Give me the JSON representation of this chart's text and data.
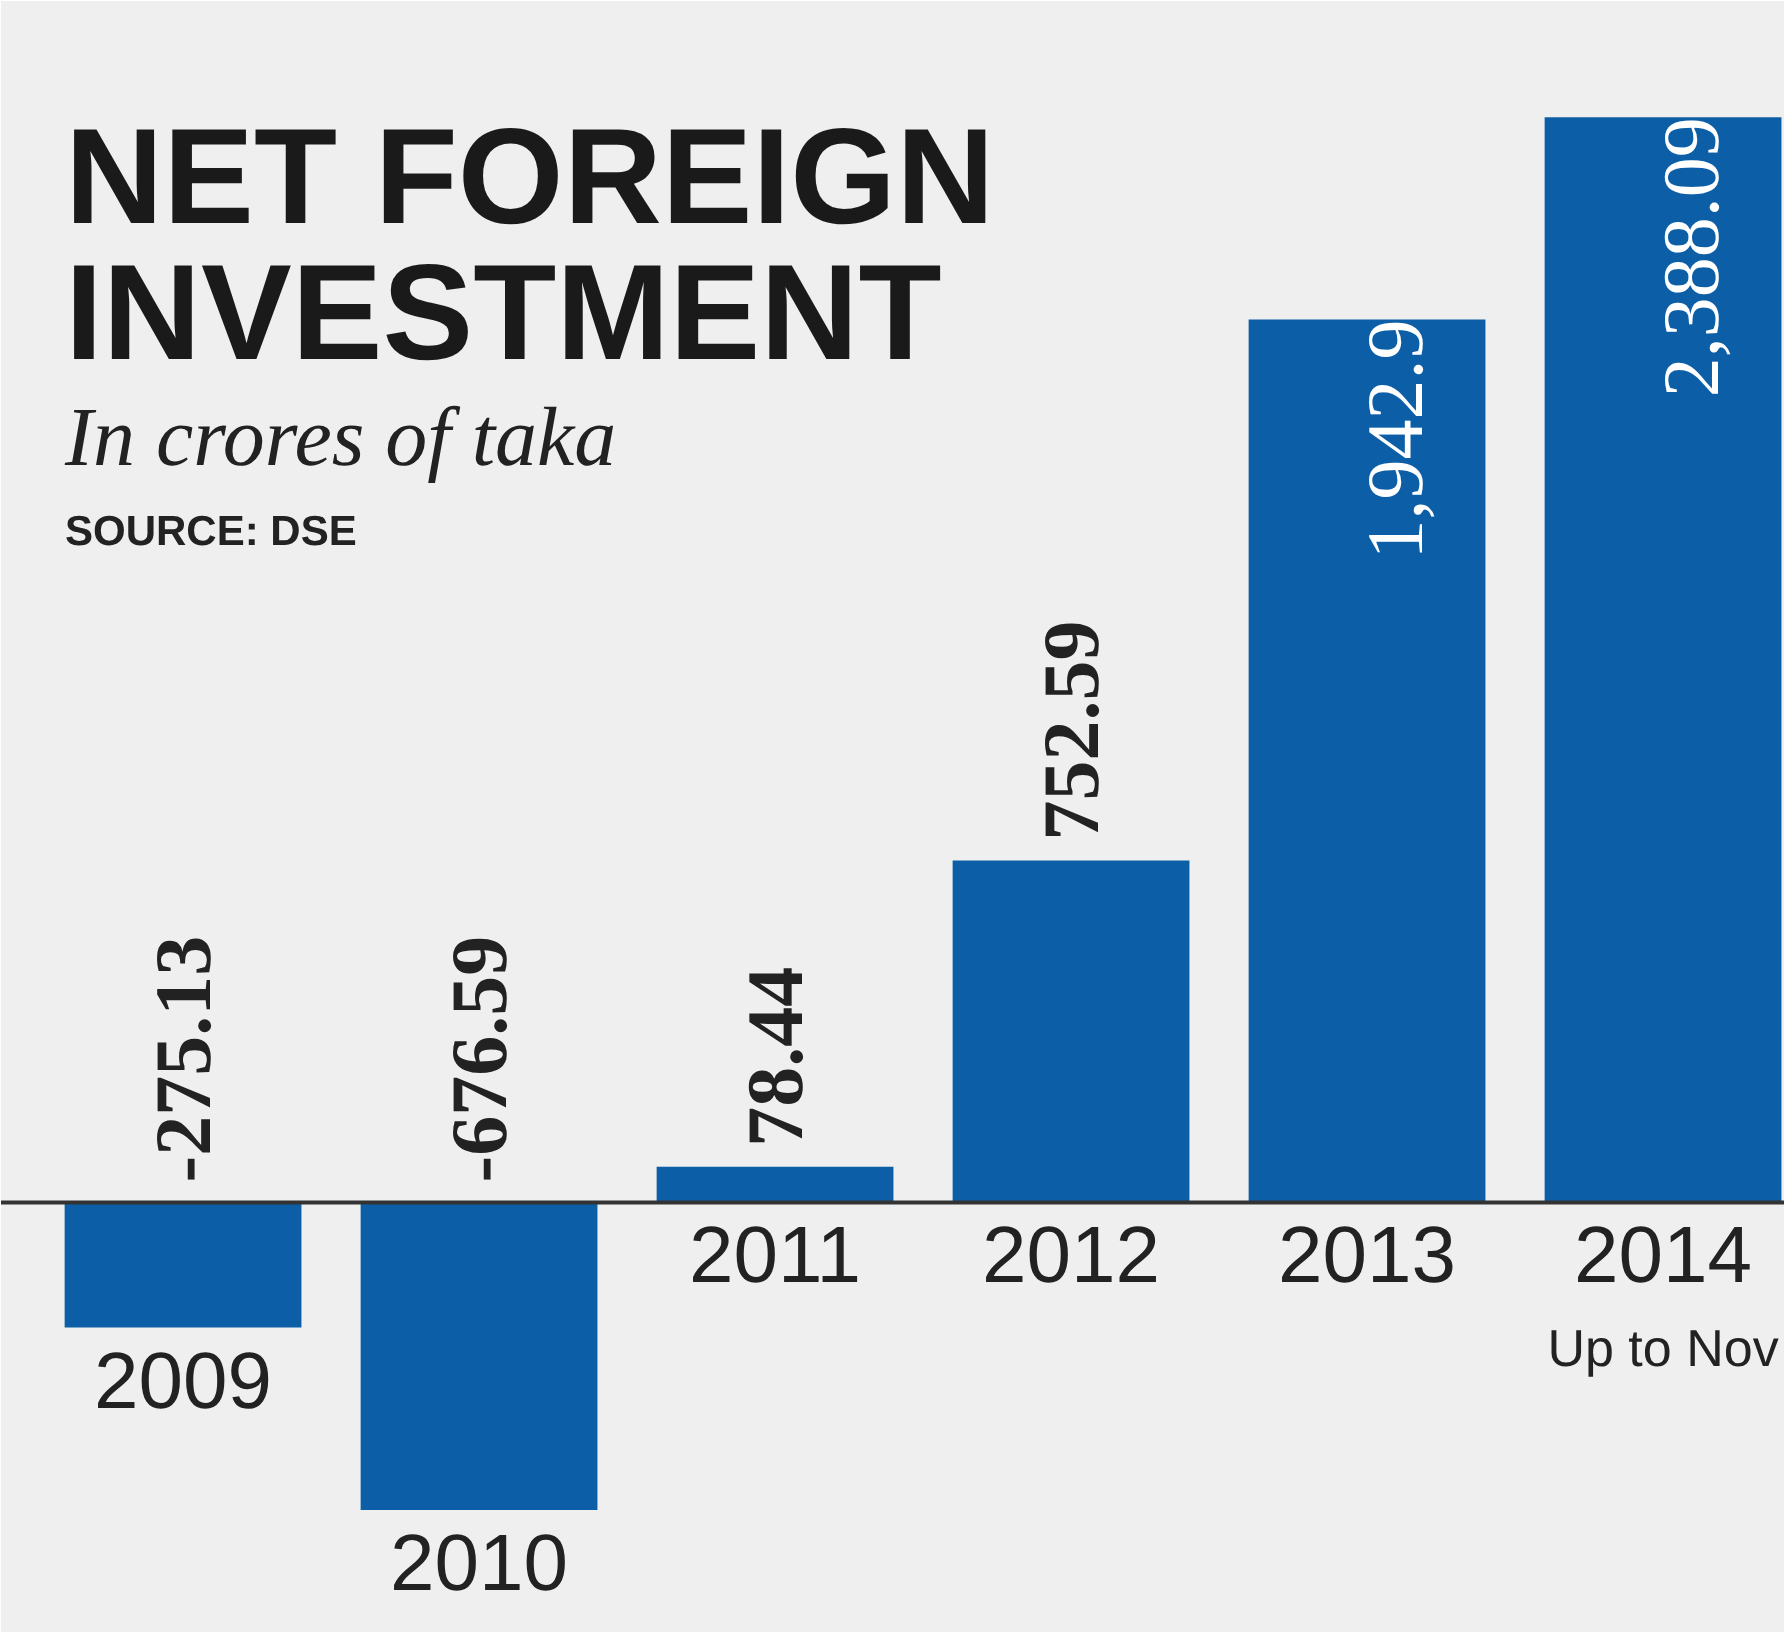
{
  "chart_data": {
    "type": "bar",
    "title": "NET FOREIGN\nINVESTMENT",
    "subtitle": "In crores of taka",
    "categories": [
      "2009",
      "2010",
      "2011",
      "2012",
      "2013",
      "2014"
    ],
    "values": [
      -275.13,
      -676.59,
      78.44,
      752.59,
      1942.9,
      2388.09
    ],
    "value_labels": [
      "-275.13",
      "-676.59",
      "78.44",
      "752.59",
      "1,942.9",
      "2,388.09"
    ],
    "color": "#0c5fa6",
    "annotations": [
      "SOURCE: DSE",
      "Up to Nov"
    ]
  }
}
